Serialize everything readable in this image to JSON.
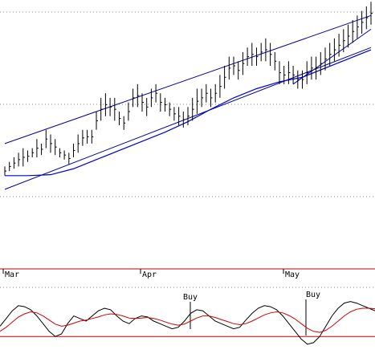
{
  "chart_data": [
    {
      "type": "ohlc",
      "x_axis_labels": [
        "Mar",
        "Apr",
        "May"
      ],
      "grid": "dotted horizontal",
      "bars": [
        [
          0,
          18,
          16
        ],
        [
          1,
          19,
          17
        ],
        [
          2,
          20,
          17.5
        ],
        [
          3,
          21,
          18
        ],
        [
          4,
          22,
          18
        ],
        [
          5,
          21.5,
          19
        ],
        [
          6,
          22,
          20
        ],
        [
          7,
          24,
          20
        ],
        [
          8,
          23,
          20.5
        ],
        [
          9,
          26,
          22
        ],
        [
          10,
          25,
          21
        ],
        [
          11,
          24,
          20.5
        ],
        [
          12,
          22,
          20
        ],
        [
          13,
          21.5,
          19.5
        ],
        [
          14,
          21,
          18.5
        ],
        [
          15,
          23,
          20
        ],
        [
          16,
          25,
          21
        ],
        [
          17,
          26,
          22.5
        ],
        [
          18,
          26,
          23
        ],
        [
          19,
          26,
          23
        ],
        [
          20,
          30,
          26
        ],
        [
          21,
          33,
          28
        ],
        [
          22,
          34,
          29
        ],
        [
          23,
          33,
          29
        ],
        [
          24,
          33,
          28
        ],
        [
          25,
          30,
          27
        ],
        [
          26,
          29,
          26
        ],
        [
          27,
          32,
          28
        ],
        [
          28,
          35,
          31
        ],
        [
          29,
          36,
          31
        ],
        [
          30,
          34,
          30
        ],
        [
          31,
          33,
          29
        ],
        [
          32,
          35,
          31
        ],
        [
          33,
          36,
          32
        ],
        [
          34,
          34,
          30
        ],
        [
          35,
          33,
          30
        ],
        [
          36,
          32,
          29
        ],
        [
          37,
          31,
          28
        ],
        [
          38,
          31,
          27
        ],
        [
          39,
          30,
          26.5
        ],
        [
          40,
          31,
          27
        ],
        [
          41,
          33,
          28
        ],
        [
          42,
          35,
          29.5
        ],
        [
          43,
          35,
          31
        ],
        [
          44,
          36,
          32
        ],
        [
          45,
          35,
          31
        ],
        [
          46,
          36,
          32
        ],
        [
          47,
          38,
          33
        ],
        [
          48,
          40,
          35
        ],
        [
          49,
          42,
          37
        ],
        [
          50,
          42,
          38
        ],
        [
          51,
          41,
          37
        ],
        [
          52,
          43,
          38
        ],
        [
          53,
          44,
          40
        ],
        [
          54,
          45,
          40
        ],
        [
          55,
          44,
          40
        ],
        [
          56,
          45,
          41
        ],
        [
          57,
          46,
          41
        ],
        [
          58,
          45,
          40
        ],
        [
          59,
          43,
          39
        ],
        [
          60,
          41,
          36
        ],
        [
          61,
          40,
          36
        ],
        [
          62,
          41,
          36
        ],
        [
          63,
          40,
          36
        ],
        [
          64,
          39,
          35
        ],
        [
          65,
          39,
          35
        ],
        [
          66,
          41,
          36
        ],
        [
          67,
          42,
          37
        ],
        [
          68,
          42,
          37
        ],
        [
          69,
          43,
          38
        ],
        [
          70,
          44,
          39
        ],
        [
          71,
          45,
          40
        ],
        [
          72,
          46,
          41
        ],
        [
          73,
          47,
          42
        ],
        [
          74,
          48,
          43
        ],
        [
          75,
          49,
          44
        ],
        [
          76,
          50,
          45
        ],
        [
          77,
          51,
          46
        ],
        [
          78,
          52,
          47
        ],
        [
          79,
          53,
          48
        ],
        [
          80,
          54,
          49
        ]
      ],
      "moving_average": [
        [
          0,
          16
        ],
        [
          5,
          16
        ],
        [
          10,
          16.2
        ],
        [
          15,
          17.5
        ],
        [
          20,
          19.5
        ],
        [
          25,
          21.5
        ],
        [
          30,
          23.5
        ],
        [
          35,
          25.5
        ],
        [
          40,
          27.8
        ],
        [
          45,
          30.5
        ],
        [
          50,
          33
        ],
        [
          55,
          35
        ],
        [
          60,
          36.5
        ],
        [
          65,
          37.5
        ],
        [
          70,
          39.5
        ],
        [
          75,
          41.5
        ],
        [
          80,
          43.5
        ]
      ],
      "trend_lines": [
        {
          "from": [
            0,
            23
          ],
          "to": [
            80,
            51
          ]
        },
        {
          "from": [
            0,
            13
          ],
          "to": [
            80,
            44
          ]
        },
        {
          "from": [
            63,
            36
          ],
          "to": [
            80,
            48
          ]
        }
      ]
    },
    {
      "type": "line",
      "series": [
        {
          "color": "#000000",
          "values": [
            40,
            55,
            70,
            80,
            78,
            72,
            60,
            45,
            30,
            20,
            25,
            45,
            60,
            55,
            50,
            60,
            70,
            75,
            72,
            60,
            50,
            45,
            55,
            60,
            58,
            50,
            45,
            40,
            35,
            38,
            50,
            65,
            72,
            70,
            60,
            50,
            45,
            40,
            35,
            38,
            52,
            65,
            75,
            80,
            78,
            72,
            60,
            45,
            30,
            15,
            5,
            8,
            20,
            40,
            60,
            75,
            85,
            88,
            85,
            80,
            75,
            70
          ]
        },
        {
          "color": "#d00000",
          "values": [
            30,
            38,
            48,
            58,
            64,
            68,
            66,
            60,
            52,
            44,
            40,
            42,
            46,
            50,
            52,
            55,
            58,
            62,
            64,
            63,
            60,
            56,
            55,
            56,
            57,
            55,
            52,
            48,
            44,
            42,
            44,
            50,
            56,
            60,
            60,
            57,
            53,
            49,
            45,
            43,
            45,
            50,
            56,
            62,
            66,
            68,
            66,
            61,
            54,
            45,
            36,
            30,
            28,
            32,
            40,
            50,
            60,
            68,
            73,
            75,
            75,
            74
          ]
        }
      ],
      "reference_level": 20,
      "annotations": [
        "Buy",
        "Buy"
      ]
    }
  ],
  "colors": {
    "price_bars": "#000000",
    "trend_lines": "#0000a0",
    "moving_average": "#0000d0",
    "oscillator_fast": "#000000",
    "oscillator_slow": "#d00000",
    "separator": "#c00000",
    "grid": "#888888"
  }
}
